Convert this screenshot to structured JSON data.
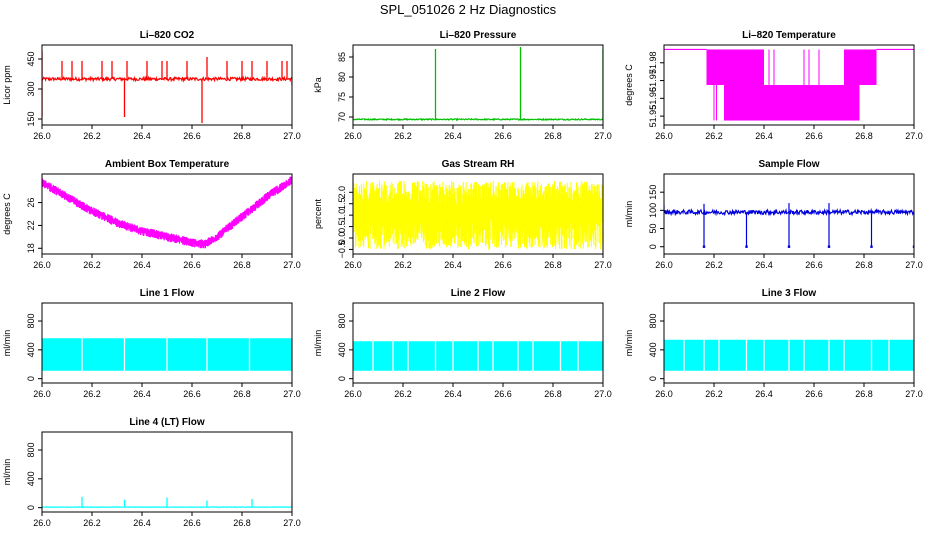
{
  "figure": {
    "title": "SPL_051026  2 Hz Diagnostics"
  },
  "chart_data": [
    {
      "id": "co2",
      "type": "line",
      "title": "Li–820 CO2",
      "ylabel": "Licor ppm",
      "color": "#ff0000",
      "xlim": [
        26.0,
        27.0
      ],
      "ylim": [
        120,
        520
      ],
      "yticks": [
        150,
        300,
        450
      ],
      "ytick_labels": [
        "150",
        "300",
        "450"
      ],
      "xticks": [
        26.0,
        26.2,
        26.4,
        26.6,
        26.8,
        27.0
      ],
      "xtick_labels": [
        "26.0",
        "26.2",
        "26.4",
        "26.6",
        "26.8",
        "27.0"
      ],
      "baseline": 350,
      "noise": 8,
      "spikes": [
        [
          26.0,
          160
        ],
        [
          26.0,
          490
        ],
        [
          26.08,
          440
        ],
        [
          26.12,
          440
        ],
        [
          26.16,
          440
        ],
        [
          26.24,
          440
        ],
        [
          26.28,
          440
        ],
        [
          26.33,
          160
        ],
        [
          26.34,
          440
        ],
        [
          26.42,
          440
        ],
        [
          26.48,
          440
        ],
        [
          26.5,
          440
        ],
        [
          26.58,
          440
        ],
        [
          26.64,
          130
        ],
        [
          26.66,
          460
        ],
        [
          26.74,
          440
        ],
        [
          26.8,
          440
        ],
        [
          26.84,
          440
        ],
        [
          26.9,
          440
        ],
        [
          26.96,
          440
        ],
        [
          26.98,
          440
        ],
        [
          27.0,
          320
        ]
      ]
    },
    {
      "id": "pressure",
      "type": "line",
      "title": "Li–820 Pressure",
      "ylabel": "kPa",
      "color": "#00c000",
      "xlim": [
        26.0,
        27.0
      ],
      "ylim": [
        68,
        88
      ],
      "yticks": [
        70,
        75,
        80,
        85
      ],
      "ytick_labels": [
        "70",
        "75",
        "80",
        "85"
      ],
      "xticks": [
        26.0,
        26.2,
        26.4,
        26.6,
        26.8,
        27.0
      ],
      "xtick_labels": [
        "26.0",
        "26.2",
        "26.4",
        "26.6",
        "26.8",
        "27.0"
      ],
      "baseline": 69.4,
      "noise": 0.15,
      "spikes": [
        [
          26.0,
          86
        ],
        [
          26.33,
          87
        ],
        [
          26.67,
          87.5
        ],
        [
          27.0,
          87
        ]
      ]
    },
    {
      "id": "licor_temp",
      "type": "line",
      "title": "Li–820 Temperature",
      "ylabel": "degrees C",
      "color": "#ff00ff",
      "xlim": [
        26.0,
        27.0
      ],
      "ylim": [
        51.945,
        51.99
      ],
      "yticks": [
        51.95,
        51.96,
        51.97,
        51.98
      ],
      "ytick_labels": [
        "51.95",
        "51.96",
        "51.97",
        "51.98"
      ],
      "xticks": [
        26.0,
        26.2,
        26.4,
        26.6,
        26.8,
        27.0
      ],
      "xtick_labels": [
        "26.0",
        "26.2",
        "26.4",
        "26.6",
        "26.8",
        "27.0"
      ],
      "segments": [
        [
          26.0,
          26.17,
          51.9875,
          51.9875
        ],
        [
          26.17,
          26.24,
          51.9675,
          51.9875
        ],
        [
          26.24,
          26.4,
          51.9475,
          51.9875
        ],
        [
          26.4,
          26.72,
          51.9475,
          51.9675
        ],
        [
          26.72,
          26.78,
          51.9475,
          51.9875
        ],
        [
          26.78,
          26.85,
          51.9675,
          51.9875
        ],
        [
          26.85,
          27.0,
          51.9875,
          51.9875
        ]
      ]
    },
    {
      "id": "ambient",
      "type": "line",
      "title": "Ambient Box Temperature",
      "ylabel": "degrees C",
      "color": "#ff00ff",
      "xlim": [
        26.0,
        27.0
      ],
      "ylim": [
        17,
        31
      ],
      "yticks": [
        18,
        22,
        26
      ],
      "ytick_labels": [
        "18",
        "22",
        "26"
      ],
      "xticks": [
        26.0,
        26.2,
        26.4,
        26.6,
        26.8,
        27.0
      ],
      "xtick_labels": [
        "26.0",
        "26.2",
        "26.4",
        "26.6",
        "26.8",
        "27.0"
      ],
      "curve": [
        [
          26.0,
          29.5
        ],
        [
          26.1,
          27.0
        ],
        [
          26.2,
          24.5
        ],
        [
          26.3,
          22.5
        ],
        [
          26.4,
          21.0
        ],
        [
          26.5,
          20.0
        ],
        [
          26.6,
          19.0
        ],
        [
          26.65,
          18.7
        ],
        [
          26.7,
          20.0
        ],
        [
          26.8,
          23.5
        ],
        [
          26.9,
          27.0
        ],
        [
          27.0,
          30.0
        ]
      ],
      "noise": 0.8
    },
    {
      "id": "rh",
      "type": "line",
      "title": "Gas Stream RH",
      "ylabel": "percent",
      "color": "#ffff00",
      "xlim": [
        26.0,
        27.0
      ],
      "ylim": [
        -0.7,
        2.8
      ],
      "yticks": [
        -0.5,
        0.0,
        0.5,
        1.0,
        1.5,
        2.0
      ],
      "ytick_labels": [
        "−0.5",
        "0.0",
        "0.5",
        "1.0",
        "1.5",
        "2.0"
      ],
      "xticks": [
        26.0,
        26.2,
        26.4,
        26.6,
        26.8,
        27.0
      ],
      "xtick_labels": [
        "26.0",
        "26.2",
        "26.4",
        "26.6",
        "26.8",
        "27.0"
      ],
      "band": [
        -0.5,
        2.5
      ]
    },
    {
      "id": "sample_flow",
      "type": "line",
      "title": "Sample Flow",
      "ylabel": "ml/min",
      "color": "#0000dd",
      "xlim": [
        26.0,
        27.0
      ],
      "ylim": [
        -20,
        200
      ],
      "yticks": [
        0,
        50,
        100,
        150
      ],
      "ytick_labels": [
        "0",
        "50",
        "100",
        "150"
      ],
      "xticks": [
        26.0,
        26.2,
        26.4,
        26.6,
        26.8,
        27.0
      ],
      "xtick_labels": [
        "26.0",
        "26.2",
        "26.4",
        "26.6",
        "26.8",
        "27.0"
      ],
      "baseline": 95,
      "noise": 6,
      "dips": [
        26.16,
        26.33,
        26.5,
        26.66,
        26.83,
        27.0
      ],
      "dip_value": 0,
      "peaks": [
        [
          26.0,
          115
        ],
        [
          26.16,
          118
        ],
        [
          26.5,
          120
        ],
        [
          26.66,
          120
        ]
      ]
    },
    {
      "id": "line1",
      "type": "line",
      "title": "Line 1 Flow",
      "ylabel": "ml/min",
      "color": "#00ffff",
      "xlim": [
        26.0,
        27.0
      ],
      "ylim": [
        -60,
        1050
      ],
      "yticks": [
        0,
        400,
        800
      ],
      "ytick_labels": [
        "0",
        "400",
        "800"
      ],
      "xticks": [
        26.0,
        26.2,
        26.4,
        26.6,
        26.8,
        27.0
      ],
      "xtick_labels": [
        "26.0",
        "26.2",
        "26.4",
        "26.6",
        "26.8",
        "27.0"
      ],
      "band": [
        110,
        560
      ],
      "gaps": [
        26.16,
        26.33,
        26.5,
        26.66,
        26.83
      ]
    },
    {
      "id": "line2",
      "type": "line",
      "title": "Line 2 Flow",
      "ylabel": "ml/min",
      "color": "#00ffff",
      "xlim": [
        26.0,
        27.0
      ],
      "ylim": [
        -60,
        1050
      ],
      "yticks": [
        0,
        400,
        800
      ],
      "ytick_labels": [
        "0",
        "400",
        "800"
      ],
      "xticks": [
        26.0,
        26.2,
        26.4,
        26.6,
        26.8,
        27.0
      ],
      "xtick_labels": [
        "26.0",
        "26.2",
        "26.4",
        "26.6",
        "26.8",
        "27.0"
      ],
      "band": [
        110,
        520
      ],
      "gaps": [
        26.16,
        26.33,
        26.5,
        26.66,
        26.83,
        26.08,
        26.22,
        26.4,
        26.56,
        26.72,
        26.9
      ]
    },
    {
      "id": "line3",
      "type": "line",
      "title": "Line 3 Flow",
      "ylabel": "ml/min",
      "color": "#00ffff",
      "xlim": [
        26.0,
        27.0
      ],
      "ylim": [
        -60,
        1050
      ],
      "yticks": [
        0,
        400,
        800
      ],
      "ytick_labels": [
        "0",
        "400",
        "800"
      ],
      "xticks": [
        26.0,
        26.2,
        26.4,
        26.6,
        26.8,
        27.0
      ],
      "xtick_labels": [
        "26.0",
        "26.2",
        "26.4",
        "26.6",
        "26.8",
        "27.0"
      ],
      "band": [
        110,
        540
      ],
      "gaps": [
        26.16,
        26.33,
        26.5,
        26.66,
        26.83,
        26.08,
        26.22,
        26.4,
        26.56,
        26.72,
        26.9
      ]
    },
    {
      "id": "line4",
      "type": "line",
      "title": "Line 4 (LT) Flow",
      "ylabel": "ml/min",
      "color": "#00ffff",
      "xlim": [
        26.0,
        27.0
      ],
      "ylim": [
        -60,
        1050
      ],
      "yticks": [
        0,
        400,
        800
      ],
      "ytick_labels": [
        "0",
        "400",
        "800"
      ],
      "xticks": [
        26.0,
        26.2,
        26.4,
        26.6,
        26.8,
        27.0
      ],
      "xtick_labels": [
        "26.0",
        "26.2",
        "26.4",
        "26.6",
        "26.8",
        "27.0"
      ],
      "baseline": 8,
      "noise": 3,
      "spikes": [
        [
          26.16,
          150
        ],
        [
          26.33,
          110
        ],
        [
          26.5,
          140
        ],
        [
          26.66,
          100
        ],
        [
          26.84,
          120
        ],
        [
          27.0,
          110
        ]
      ]
    }
  ]
}
